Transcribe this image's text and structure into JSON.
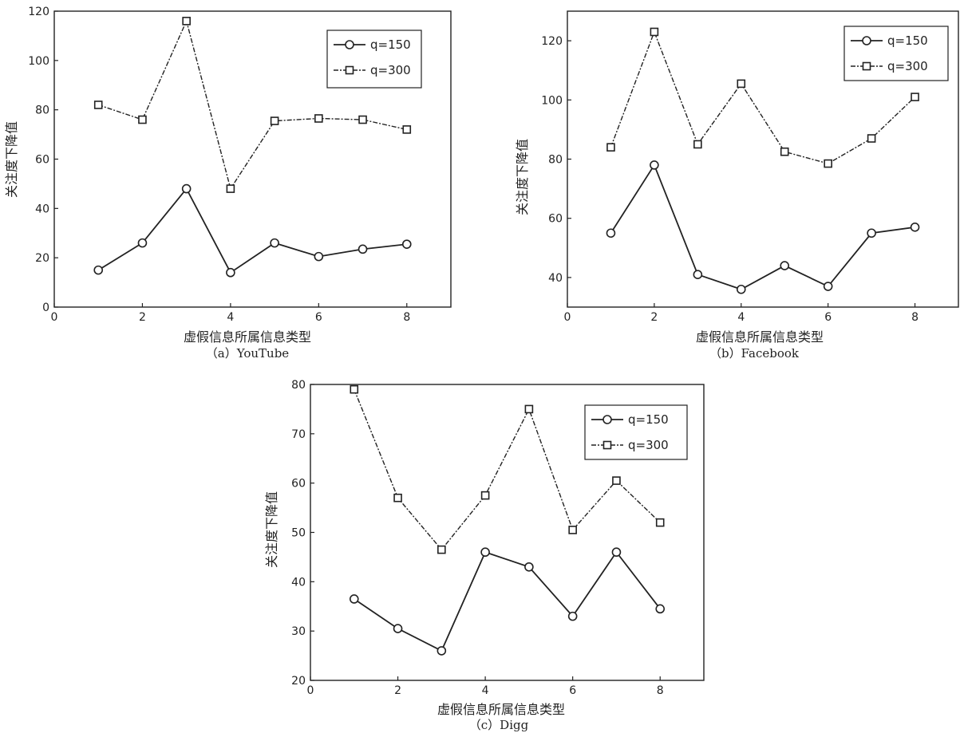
{
  "chart_data": [
    {
      "type": "line",
      "caption": "（a）YouTube",
      "xlabel": "虚假信息所属信息类型",
      "ylabel": "关注度下降值",
      "xlim": [
        0,
        9
      ],
      "ylim": [
        0,
        120
      ],
      "xticks": [
        0,
        2,
        4,
        6,
        8
      ],
      "yticks": [
        0,
        20,
        40,
        60,
        80,
        100,
        120
      ],
      "grid": false,
      "legend_position": "top-right",
      "x": [
        1,
        2,
        3,
        4,
        5,
        6,
        7,
        8
      ],
      "series": [
        {
          "name": "q=150",
          "marker": "circle",
          "line": "solid",
          "values": [
            15,
            26,
            48,
            14,
            26,
            20.5,
            23.5,
            25.5
          ]
        },
        {
          "name": "q=300",
          "marker": "square",
          "line": "dashdot",
          "values": [
            82,
            76,
            116,
            48,
            75.5,
            76.5,
            76,
            72
          ]
        }
      ]
    },
    {
      "type": "line",
      "caption": "（b）Facebook",
      "xlabel": "虚假信息所属信息类型",
      "ylabel": "关注度下降值",
      "xlim": [
        0,
        9
      ],
      "ylim": [
        30,
        130
      ],
      "xticks": [
        0,
        2,
        4,
        6,
        8
      ],
      "yticks": [
        40,
        60,
        80,
        100,
        120
      ],
      "grid": false,
      "legend_position": "top-right",
      "x": [
        1,
        2,
        3,
        4,
        5,
        6,
        7,
        8
      ],
      "series": [
        {
          "name": "q=150",
          "marker": "circle",
          "line": "solid",
          "values": [
            55,
            78,
            41,
            36,
            44,
            37,
            55,
            57
          ]
        },
        {
          "name": "q=300",
          "marker": "square",
          "line": "dashdot",
          "values": [
            84,
            123,
            85,
            105.5,
            82.5,
            78.5,
            87,
            101
          ]
        }
      ]
    },
    {
      "type": "line",
      "caption": "（c）Digg",
      "xlabel": "虚假信息所属信息类型",
      "ylabel": "关注度下降值",
      "xlim": [
        0,
        9
      ],
      "ylim": [
        20,
        80
      ],
      "xticks": [
        0,
        2,
        4,
        6,
        8
      ],
      "yticks": [
        20,
        30,
        40,
        50,
        60,
        70,
        80
      ],
      "grid": false,
      "legend_position": "top-right",
      "x": [
        1,
        2,
        3,
        4,
        5,
        6,
        7,
        8
      ],
      "series": [
        {
          "name": "q=150",
          "marker": "circle",
          "line": "solid",
          "values": [
            36.5,
            30.5,
            26,
            46,
            43,
            33,
            46,
            34.5
          ]
        },
        {
          "name": "q=300",
          "marker": "square",
          "line": "dashdot",
          "values": [
            79,
            57,
            46.5,
            57.5,
            75,
            50.5,
            60.5,
            52
          ]
        }
      ]
    }
  ]
}
